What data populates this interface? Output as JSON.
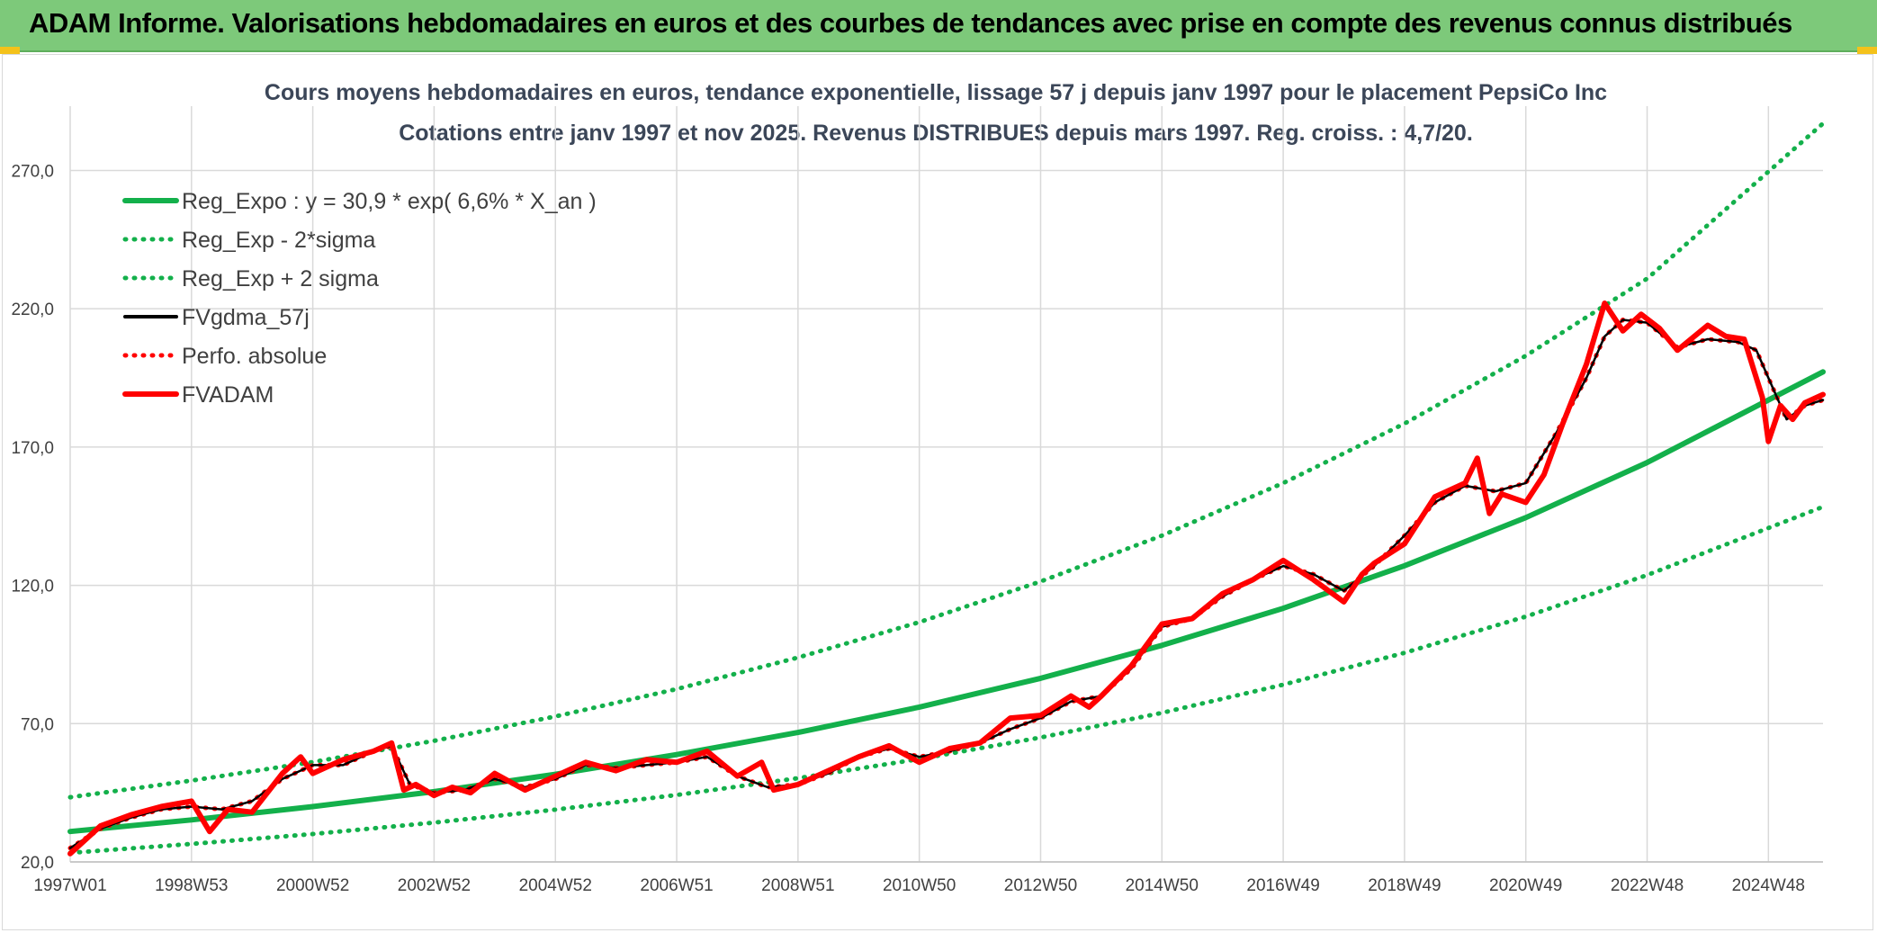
{
  "banner": {
    "title": "ADAM Informe. Valorisations hebdomadaires en euros et des courbes de tendances avec prise en compte des revenus connus distribués"
  },
  "colors": {
    "banner_bg": "#7dc97a",
    "trend_green": "#13b04b",
    "fvgdma_black": "#000000",
    "fvadam_red": "#ff0000",
    "grid": "#d9d9d9"
  },
  "chart_data": {
    "type": "line",
    "title": "Cours moyens hebdomadaires en euros, tendance exponentielle, lissage 57 j depuis janv 1997 pour le placement PepsiCo Inc",
    "subtitle": "Cotations entre janv 1997 et nov 2025. Revenus DISTRIBUES depuis mars 1997. Reg. croiss. : 4,7/20.",
    "xlabel": "",
    "ylabel": "",
    "ylim": [
      20,
      290
    ],
    "xlim": [
      1997.0,
      2025.9
    ],
    "y_ticks": [
      "20,0",
      "70,0",
      "120,0",
      "170,0",
      "220,0",
      "270,0"
    ],
    "y_tick_values": [
      20,
      70,
      120,
      170,
      220,
      270
    ],
    "x_ticks": [
      "1997W01",
      "1998W53",
      "2000W52",
      "2002W52",
      "2004W52",
      "2006W51",
      "2008W51",
      "2010W50",
      "2012W50",
      "2014W50",
      "2016W49",
      "2018W49",
      "2020W49",
      "2022W48",
      "2024W48"
    ],
    "x_tick_values": [
      1997.0,
      1999.0,
      2001.0,
      2003.0,
      2005.0,
      2007.0,
      2009.0,
      2011.0,
      2013.0,
      2015.0,
      2017.0,
      2019.0,
      2021.0,
      2023.0,
      2025.0
    ],
    "grid": true,
    "legend_position": "top-left",
    "series": [
      {
        "name": "Reg_Expo : y = 30,9 * exp( 6,6% *  X_an )",
        "style": "solid-thick",
        "color": "#13b04b",
        "x": [
          1997.0,
          1999.0,
          2001.0,
          2003.0,
          2005.0,
          2007.0,
          2009.0,
          2011.0,
          2013.0,
          2015.0,
          2017.0,
          2019.0,
          2021.0,
          2023.0,
          2025.9
        ],
        "y": [
          31.0,
          35.2,
          40.0,
          45.4,
          51.7,
          58.8,
          66.8,
          76.0,
          86.4,
          98.3,
          111.7,
          127.1,
          144.5,
          164.4,
          197.2
        ]
      },
      {
        "name": "Reg_Exp - 2*sigma",
        "style": "dotted",
        "color": "#13b04b",
        "x": [
          1997.0,
          1999.0,
          2001.0,
          2003.0,
          2005.0,
          2007.0,
          2009.0,
          2011.0,
          2013.0,
          2015.0,
          2017.0,
          2019.0,
          2021.0,
          2023.0,
          2025.9
        ],
        "y": [
          23.3,
          26.5,
          30.1,
          34.2,
          38.9,
          44.2,
          50.3,
          57.2,
          65.0,
          73.9,
          84.1,
          95.6,
          108.7,
          123.7,
          148.4
        ]
      },
      {
        "name": "Reg_Exp + 2 sigma",
        "style": "dotted",
        "color": "#13b04b",
        "x": [
          1997.0,
          1999.0,
          2001.0,
          2003.0,
          2005.0,
          2007.0,
          2009.0,
          2011.0,
          2013.0,
          2015.0,
          2017.0,
          2019.0,
          2021.0,
          2023.0,
          2025.9
        ],
        "y": [
          43.4,
          49.4,
          56.1,
          63.8,
          72.6,
          82.5,
          93.9,
          106.7,
          121.4,
          138.0,
          157.0,
          178.5,
          203.0,
          230.9,
          287.0
        ]
      },
      {
        "name": "FVgdma_57j",
        "style": "solid",
        "color": "#000000",
        "x": [
          1997.0,
          1997.5,
          1998.0,
          1998.5,
          1999.0,
          1999.5,
          2000.0,
          2000.5,
          2001.0,
          2001.5,
          2002.0,
          2002.3,
          2002.6,
          2003.0,
          2003.5,
          2004.0,
          2004.5,
          2005.0,
          2005.5,
          2006.0,
          2006.5,
          2007.0,
          2007.5,
          2008.0,
          2008.5,
          2009.0,
          2009.5,
          2010.0,
          2010.5,
          2011.0,
          2011.5,
          2012.0,
          2012.5,
          2013.0,
          2013.5,
          2014.0,
          2014.5,
          2015.0,
          2015.5,
          2016.0,
          2016.5,
          2017.0,
          2017.5,
          2018.0,
          2018.5,
          2019.0,
          2019.5,
          2020.0,
          2020.5,
          2021.0,
          2021.5,
          2022.0,
          2022.3,
          2022.6,
          2023.0,
          2023.5,
          2024.0,
          2024.5,
          2024.8,
          2025.0,
          2025.3,
          2025.6,
          2025.9
        ],
        "y": [
          25,
          32,
          36,
          39,
          40,
          39,
          42,
          50,
          55,
          55,
          60,
          62,
          48,
          45,
          46,
          50,
          47,
          50,
          55,
          54,
          55,
          56,
          58,
          51,
          47,
          48,
          52,
          58,
          61,
          58,
          60,
          63,
          68,
          72,
          78,
          80,
          90,
          105,
          108,
          116,
          122,
          127,
          124,
          118,
          127,
          138,
          150,
          156,
          154,
          157,
          175,
          195,
          210,
          216,
          215,
          206,
          209,
          208,
          205,
          195,
          180,
          185,
          187
        ]
      },
      {
        "name": "Perfo. absolue",
        "style": "dotted",
        "color": "#ff0000",
        "x": [
          1997.0,
          1997.5,
          1998.0,
          1998.5,
          1999.0,
          1999.5,
          2000.0,
          2000.5,
          2001.0,
          2001.5,
          2002.0,
          2002.3,
          2002.6,
          2003.0,
          2003.5,
          2004.0,
          2004.5,
          2005.0,
          2005.5,
          2006.0,
          2006.5,
          2007.0,
          2007.5,
          2008.0,
          2008.5,
          2009.0,
          2009.5,
          2010.0,
          2010.5,
          2011.0,
          2011.5,
          2012.0,
          2012.5,
          2013.0,
          2013.5,
          2014.0,
          2014.5,
          2015.0,
          2015.5,
          2016.0,
          2016.5,
          2017.0,
          2017.5,
          2018.0,
          2018.5,
          2019.0,
          2019.5,
          2020.0,
          2020.5,
          2021.0,
          2021.5,
          2022.0,
          2022.3,
          2022.6,
          2023.0,
          2023.5,
          2024.0,
          2024.5,
          2024.8,
          2025.0,
          2025.3,
          2025.6,
          2025.9
        ],
        "y": [
          25,
          32,
          36,
          39,
          40,
          39,
          42,
          50,
          55,
          55,
          60,
          62,
          48,
          45,
          46,
          50,
          47,
          50,
          55,
          54,
          55,
          56,
          58,
          51,
          47,
          48,
          52,
          58,
          61,
          58,
          60,
          63,
          68,
          72,
          78,
          80,
          90,
          105,
          108,
          116,
          122,
          127,
          124,
          118,
          127,
          138,
          150,
          156,
          154,
          157,
          175,
          195,
          210,
          216,
          215,
          206,
          209,
          208,
          205,
          195,
          180,
          185,
          187
        ]
      },
      {
        "name": "FVADAM",
        "style": "solid-thick",
        "color": "#ff0000",
        "x": [
          1997.0,
          1997.5,
          1998.0,
          1998.5,
          1999.0,
          1999.3,
          1999.6,
          2000.0,
          2000.5,
          2000.8,
          2001.0,
          2001.5,
          2002.0,
          2002.3,
          2002.5,
          2002.7,
          2003.0,
          2003.3,
          2003.6,
          2004.0,
          2004.5,
          2005.0,
          2005.5,
          2006.0,
          2006.5,
          2007.0,
          2007.5,
          2008.0,
          2008.4,
          2008.6,
          2009.0,
          2009.5,
          2010.0,
          2010.5,
          2011.0,
          2011.5,
          2012.0,
          2012.5,
          2013.0,
          2013.5,
          2013.8,
          2014.0,
          2014.5,
          2015.0,
          2015.5,
          2016.0,
          2016.5,
          2017.0,
          2017.5,
          2018.0,
          2018.3,
          2018.5,
          2019.0,
          2019.5,
          2020.0,
          2020.2,
          2020.4,
          2020.6,
          2021.0,
          2021.3,
          2021.6,
          2022.0,
          2022.3,
          2022.6,
          2022.9,
          2023.2,
          2023.5,
          2024.0,
          2024.3,
          2024.6,
          2024.9,
          2025.0,
          2025.2,
          2025.4,
          2025.6,
          2025.9
        ],
        "y": [
          23,
          33,
          37,
          40,
          42,
          31,
          39,
          38,
          52,
          58,
          52,
          57,
          60,
          63,
          46,
          48,
          44,
          47,
          45,
          52,
          46,
          51,
          56,
          53,
          57,
          56,
          60,
          51,
          56,
          46,
          48,
          53,
          58,
          62,
          56,
          61,
          63,
          72,
          73,
          80,
          76,
          80,
          91,
          106,
          108,
          117,
          122,
          129,
          122,
          114,
          124,
          128,
          135,
          152,
          157,
          166,
          146,
          153,
          150,
          160,
          178,
          200,
          222,
          212,
          218,
          213,
          205,
          214,
          210,
          209,
          188,
          172,
          185,
          180,
          186,
          189
        ]
      }
    ]
  }
}
